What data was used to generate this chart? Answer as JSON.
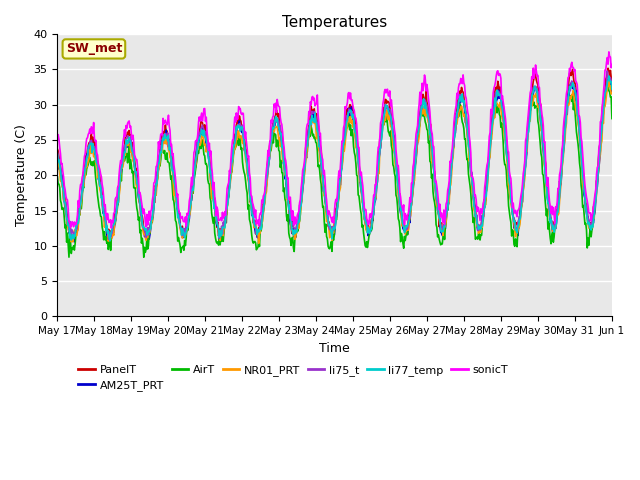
{
  "title": "Temperatures",
  "xlabel": "Time",
  "ylabel": "Temperature (C)",
  "ylim": [
    0,
    40
  ],
  "yticks": [
    0,
    5,
    10,
    15,
    20,
    25,
    30,
    35,
    40
  ],
  "bg_color": "#e8e8e8",
  "series_order": [
    "PanelT",
    "AM25T_PRT",
    "AirT",
    "NR01_PRT",
    "li75_t",
    "li77_temp",
    "sonicT"
  ],
  "series": {
    "PanelT": {
      "color": "#cc0000",
      "lw": 1.2
    },
    "AM25T_PRT": {
      "color": "#0000cc",
      "lw": 1.2
    },
    "AirT": {
      "color": "#00bb00",
      "lw": 1.2
    },
    "NR01_PRT": {
      "color": "#ff9900",
      "lw": 1.2
    },
    "li75_t": {
      "color": "#9933cc",
      "lw": 1.2
    },
    "li77_temp": {
      "color": "#00cccc",
      "lw": 1.2
    },
    "sonicT": {
      "color": "#ff00ff",
      "lw": 1.2
    }
  },
  "station_label": "SW_met",
  "station_label_color": "#8b0000",
  "station_box_facecolor": "#ffffcc",
  "station_box_edgecolor": "#aaaa00",
  "legend_ncol": 6,
  "n_days": 15,
  "start_month": 5,
  "start_day": 17
}
